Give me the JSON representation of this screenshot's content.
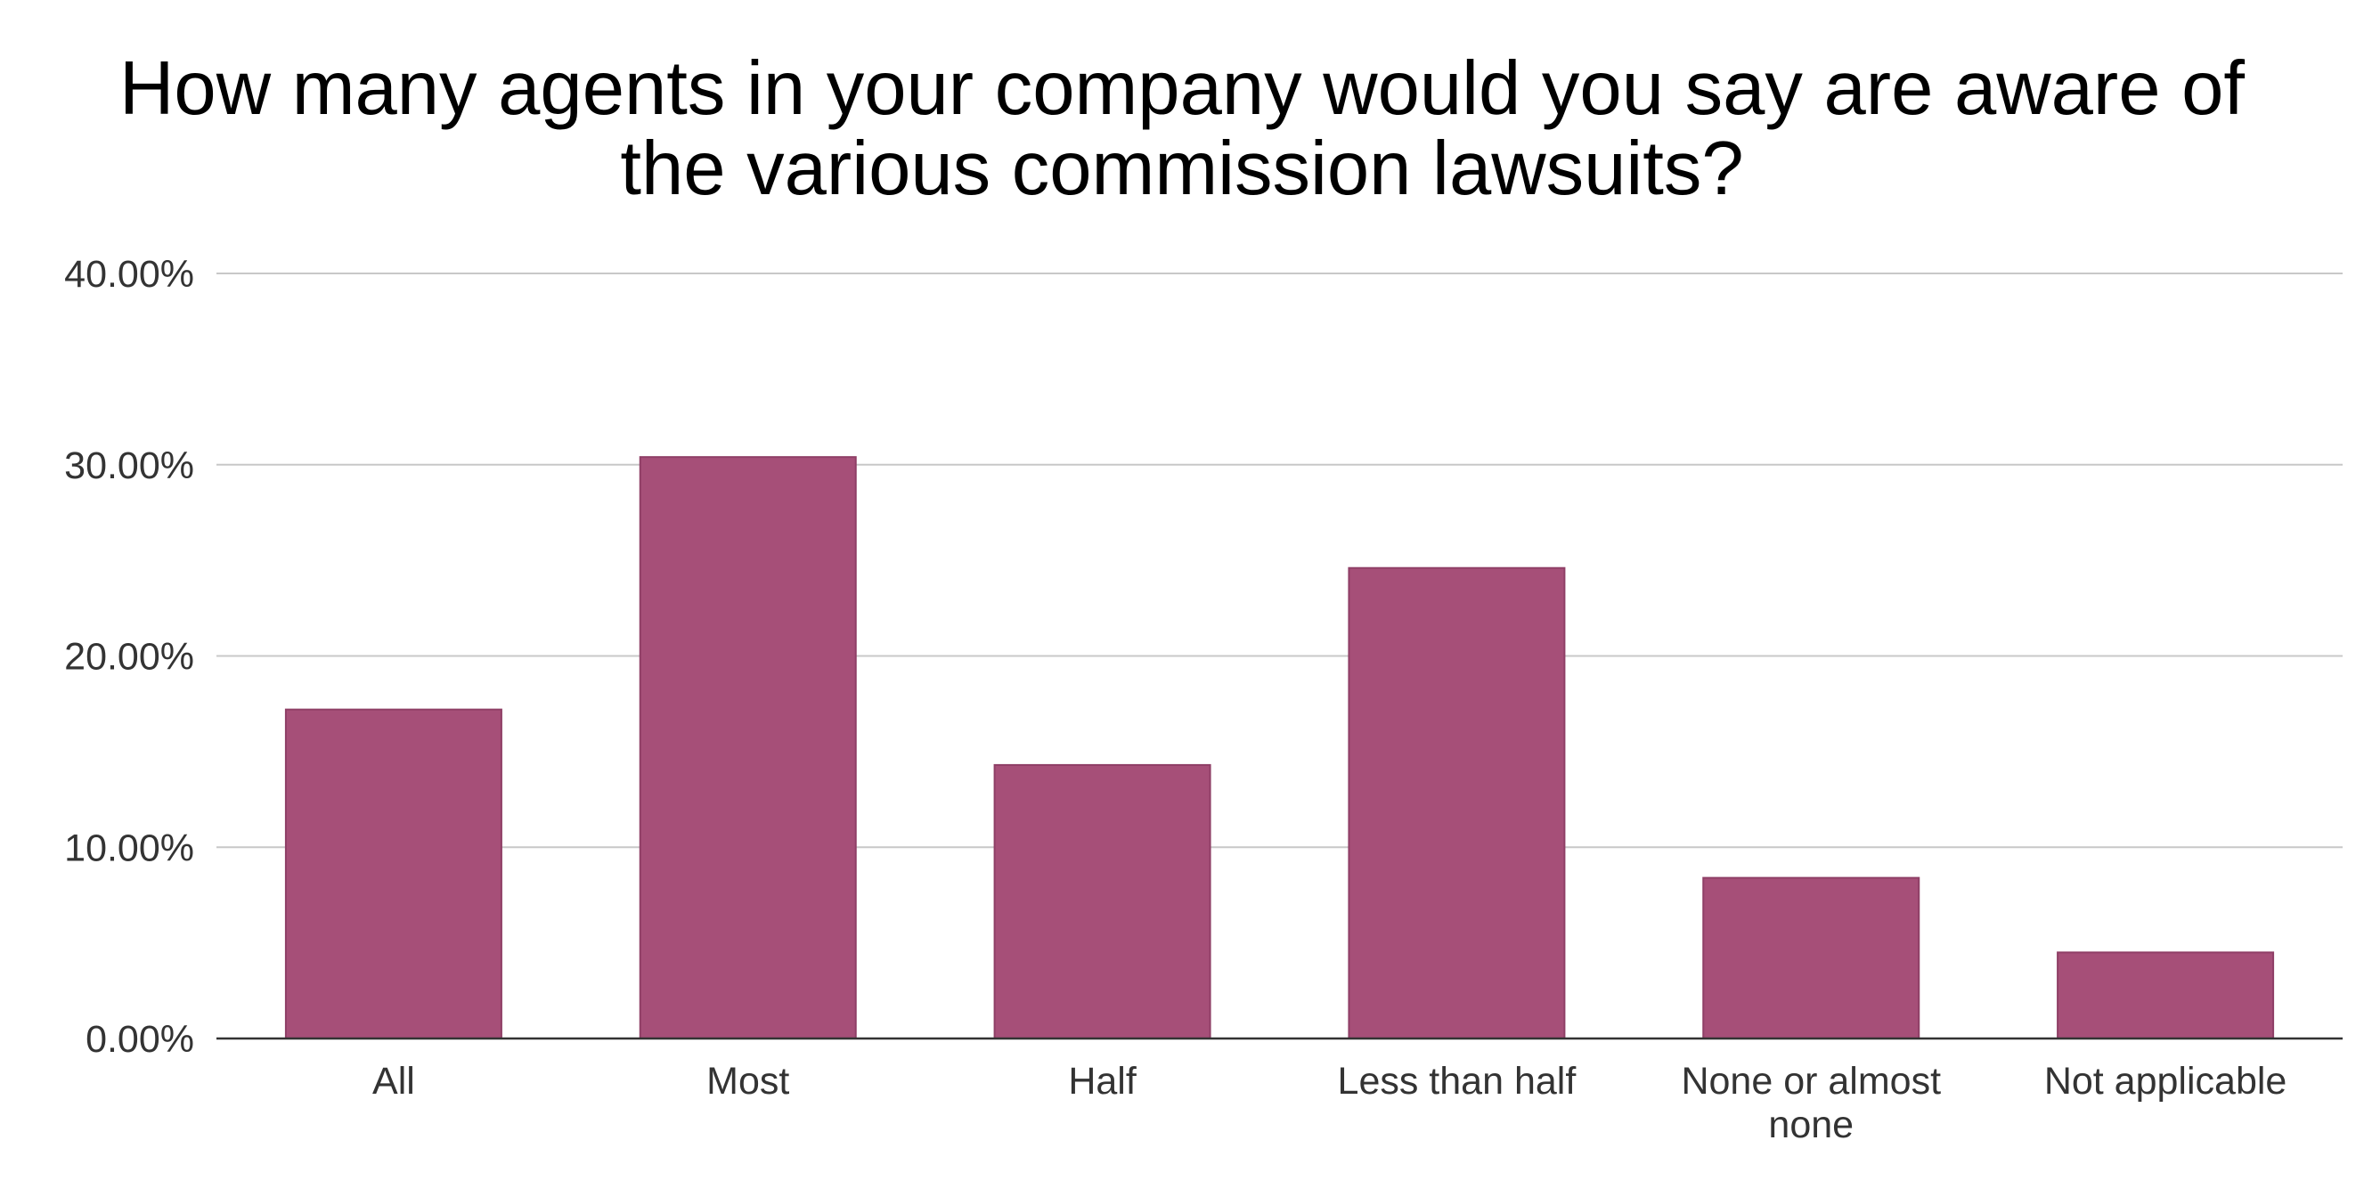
{
  "chart_data": {
    "type": "bar",
    "title": "How many agents in your company would you say are aware of the various commission lawsuits?",
    "title_lines": [
      "How many agents in your company would you say are aware of",
      "the various commission lawsuits?"
    ],
    "categories": [
      "All",
      "Most",
      "Half",
      "Less than half",
      "None or almost none",
      "Not applicable"
    ],
    "category_label_lines": [
      [
        "All"
      ],
      [
        "Most"
      ],
      [
        "Half"
      ],
      [
        "Less than half"
      ],
      [
        "None or almost",
        "none"
      ],
      [
        "Not applicable"
      ]
    ],
    "values": [
      17.2,
      30.4,
      14.3,
      24.6,
      8.4,
      4.5
    ],
    "ylim": [
      0,
      40
    ],
    "yticks": [
      0,
      10,
      20,
      30,
      40
    ],
    "ytick_labels": [
      "0.00%",
      "10.00%",
      "20.00%",
      "30.00%",
      "40.00%"
    ],
    "xlabel": "",
    "ylabel": "",
    "grid": true,
    "legend": "none",
    "bar_color": "#a64f78",
    "bar_edge_color": "#8f3f66"
  }
}
